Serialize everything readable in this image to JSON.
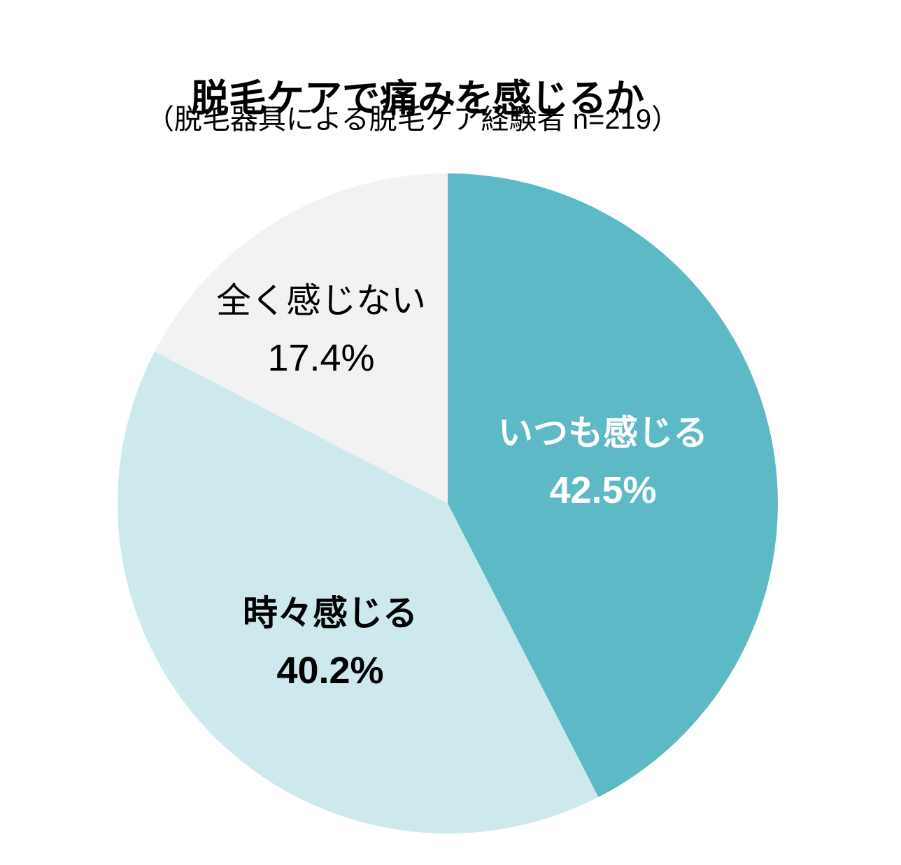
{
  "chart_data": {
    "type": "pie",
    "title": "脱毛ケアで痛みを感じるか",
    "subtitle": "（脱毛器具による脱毛ケア経験者 n=219）",
    "sample_size": 219,
    "start_angle_deg": 0,
    "direction": "clockwise",
    "legend": "none (labels drawn on slices)",
    "background_color": "#FFFFFF",
    "slices": [
      {
        "label": "いつも感じる",
        "value": 42.5,
        "pct_label": "42.5%",
        "color": "#5DB9C6",
        "label_color": "#FFFFFF",
        "label_bold": true
      },
      {
        "label": "時々感じる",
        "value": 40.2,
        "pct_label": "40.2%",
        "color": "#CEE9EE",
        "label_color": "#000000",
        "label_bold": true
      },
      {
        "label": "全く感じない",
        "value": 17.4,
        "pct_label": "17.4%",
        "color": "#F2F2F2",
        "label_color": "#000000",
        "label_bold": false
      }
    ]
  }
}
